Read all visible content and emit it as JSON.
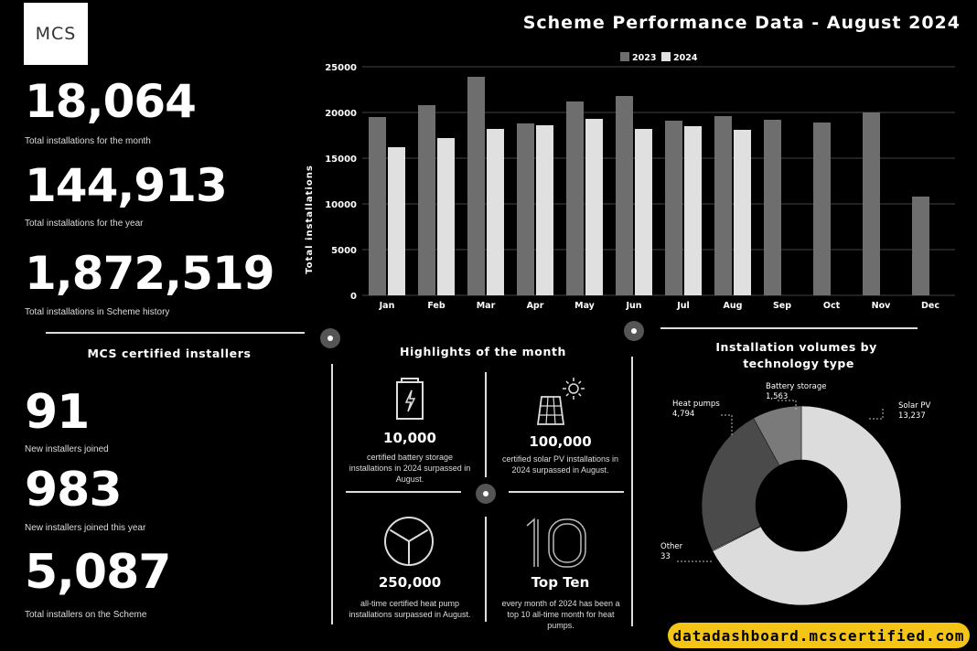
{
  "logo_text": "MCS",
  "page_title": "Scheme Performance Data - August 2024",
  "stats": [
    {
      "value": "18,064",
      "label": "Total installations for the month"
    },
    {
      "value": "144,913",
      "label": "Total installations for the year"
    },
    {
      "value": "1,872,519",
      "label": "Total installations in Scheme history"
    }
  ],
  "installers_title": "MCS certified installers",
  "installer_stats": [
    {
      "value": "91",
      "label": "New installers joined"
    },
    {
      "value": "983",
      "label": "New installers joined this year"
    },
    {
      "value": "5,087",
      "label": "Total installers on the Scheme"
    }
  ],
  "highlights": {
    "title": "Highlights of the month",
    "items": [
      {
        "icon": "battery-icon",
        "value": "10,000",
        "text": "certified battery storage installations in 2024 surpassed in August."
      },
      {
        "icon": "solar-panel-icon",
        "value": "100,000",
        "text": "certified solar PV installations in 2024 surpassed in August."
      },
      {
        "icon": "heat-pump-fan-icon",
        "value": "250,000",
        "text": "all-time certified heat pump installations surpassed in August."
      },
      {
        "icon": "number-ten-icon",
        "value": "Top Ten",
        "text": "every month of 2024 has been a top 10 all-time month for heat pumps."
      }
    ]
  },
  "url_text": "datadashboard.mcscertified.com",
  "colors": {
    "series_2023": "#6e6e6e",
    "series_2024": "#e0e0e0",
    "url_badge": "#f4c417"
  },
  "chart_data": [
    {
      "type": "bar",
      "title": "",
      "ylabel": "Total installations",
      "xlabel": "",
      "categories": [
        "Jan",
        "Feb",
        "Mar",
        "Apr",
        "May",
        "Jun",
        "Jul",
        "Aug",
        "Sep",
        "Oct",
        "Nov",
        "Dec"
      ],
      "series": [
        {
          "name": "2023",
          "values": [
            19500,
            20800,
            23900,
            18800,
            21200,
            21800,
            19100,
            19600,
            19200,
            18900,
            20000,
            10800
          ]
        },
        {
          "name": "2024",
          "values": [
            16200,
            17200,
            18200,
            18600,
            19300,
            18200,
            18500,
            18100,
            null,
            null,
            null,
            null
          ]
        }
      ],
      "ylim": [
        0,
        25000
      ],
      "yticks": [
        0,
        5000,
        10000,
        15000,
        20000,
        25000
      ],
      "grid": true,
      "legend": "top-center"
    },
    {
      "type": "pie",
      "donut": true,
      "title": "Installation volumes by technology type",
      "slices": [
        {
          "label": "Solar PV",
          "value": 13237,
          "display": "13,237",
          "color": "#dcdcdc"
        },
        {
          "label": "Other",
          "value": 33,
          "display": "33",
          "color": "#cfcfcf"
        },
        {
          "label": "Heat pumps",
          "value": 4794,
          "display": "4,794",
          "color": "#4a4a4a"
        },
        {
          "label": "Battery storage",
          "value": 1563,
          "display": "1,563",
          "color": "#7a7a7a"
        }
      ]
    }
  ]
}
